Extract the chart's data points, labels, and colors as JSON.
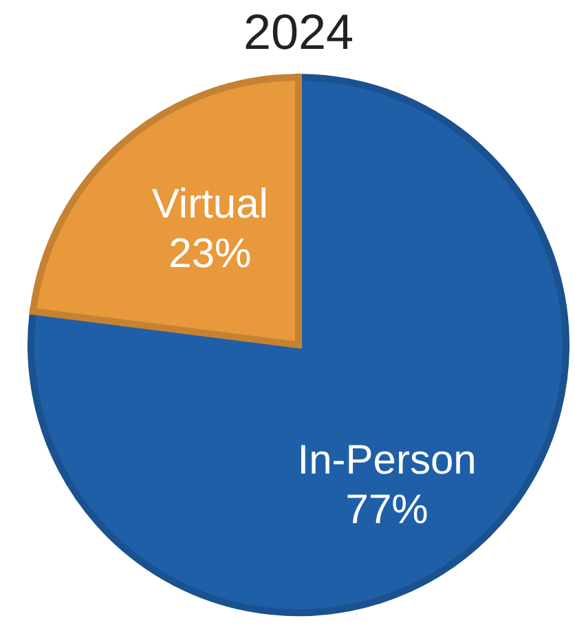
{
  "chart_data": {
    "type": "pie",
    "title": "2024",
    "categories": [
      "In-Person",
      "Virtual"
    ],
    "values": [
      77,
      23
    ],
    "colors": [
      "#1f5fa8",
      "#e8993c"
    ],
    "value_labels": [
      "77%",
      "23%"
    ]
  }
}
